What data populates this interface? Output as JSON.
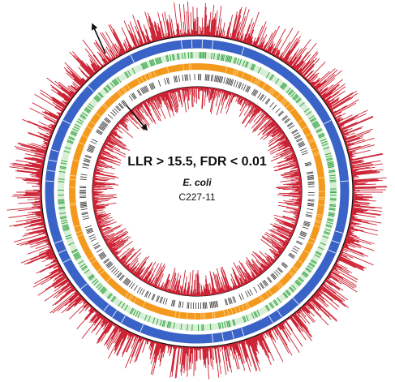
{
  "title": "LLR > 15.5, FDR < 0.01",
  "organism": "E. coli",
  "strain": "C227-11"
}
